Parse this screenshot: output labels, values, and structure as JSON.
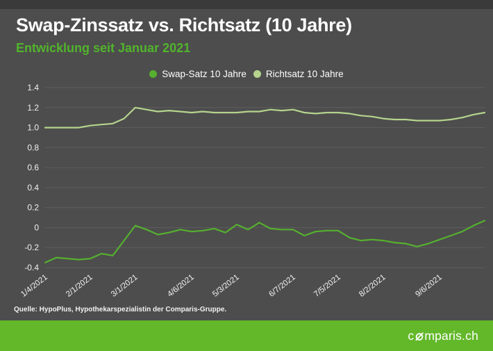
{
  "header": {
    "title": "Swap-Zinssatz vs. Richtsatz (10 Jahre)",
    "subtitle": "Entwicklung seit Januar 2021"
  },
  "legend": {
    "items": [
      {
        "label": "Swap-Satz 10 Jahre",
        "color": "#55b02f"
      },
      {
        "label": "Richtsatz 10 Jahre",
        "color": "#b5d48d"
      }
    ]
  },
  "chart_data": {
    "type": "line",
    "title": "Swap-Zinssatz vs. Richtsatz (10 Jahre)",
    "subtitle": "Entwicklung seit Januar 2021",
    "x_unit": "weekly observations, M/D/YYYY",
    "n_points": 40,
    "x_tick_labels": [
      "1/4/2021",
      "2/1/2021",
      "3/1/2021",
      "4/6/2021",
      "5/3/2021",
      "6/7/2021",
      "7/5/2021",
      "8/2/2021",
      "9/6/2021"
    ],
    "x_tick_indices": [
      0,
      4,
      8,
      13,
      17,
      22,
      26,
      30,
      35
    ],
    "ylim": [
      -0.4,
      1.4
    ],
    "y_tick_labels": [
      "1.4",
      "1.2",
      "1.0",
      "0.8",
      "0.6",
      "0.4",
      "0.2",
      "0",
      "-0.2",
      "-0.4"
    ],
    "grid": true,
    "legend_position": "top-center",
    "series": [
      {
        "name": "Swap-Satz 10 Jahre",
        "color": "#55b02f",
        "values": [
          -0.35,
          -0.3,
          -0.31,
          -0.32,
          -0.31,
          -0.26,
          -0.28,
          -0.13,
          0.02,
          -0.02,
          -0.07,
          -0.05,
          -0.02,
          -0.04,
          -0.03,
          -0.01,
          -0.05,
          0.03,
          -0.02,
          0.05,
          -0.01,
          -0.02,
          -0.02,
          -0.08,
          -0.04,
          -0.03,
          -0.03,
          -0.1,
          -0.13,
          -0.12,
          -0.13,
          -0.15,
          -0.16,
          -0.19,
          -0.16,
          -0.12,
          -0.08,
          -0.04,
          0.02,
          0.07
        ]
      },
      {
        "name": "Richtsatz 10 Jahre",
        "color": "#b5d48d",
        "values": [
          1.0,
          1.0,
          1.0,
          1.0,
          1.02,
          1.03,
          1.04,
          1.09,
          1.2,
          1.18,
          1.16,
          1.17,
          1.16,
          1.15,
          1.16,
          1.15,
          1.15,
          1.15,
          1.16,
          1.16,
          1.18,
          1.17,
          1.18,
          1.15,
          1.14,
          1.15,
          1.15,
          1.14,
          1.12,
          1.11,
          1.09,
          1.08,
          1.08,
          1.07,
          1.07,
          1.07,
          1.08,
          1.1,
          1.13,
          1.15
        ]
      }
    ]
  },
  "source": {
    "text": "Quelle: HypoPlus, Hypothekarspezialistin der Comparis-Gruppe."
  },
  "footer": {
    "brand_prefix": "c",
    "brand_suffix": "mparis.ch"
  },
  "colors": {
    "background": "#4d4d4d",
    "top_strip": "#3a3a3a",
    "grid": "#5e5e5e",
    "title_text": "#ffffff",
    "subtitle_green": "#52b42c",
    "axis_text": "#f2f2f2",
    "footer_green": "#63b82a",
    "footer_text": "#ffffff"
  }
}
